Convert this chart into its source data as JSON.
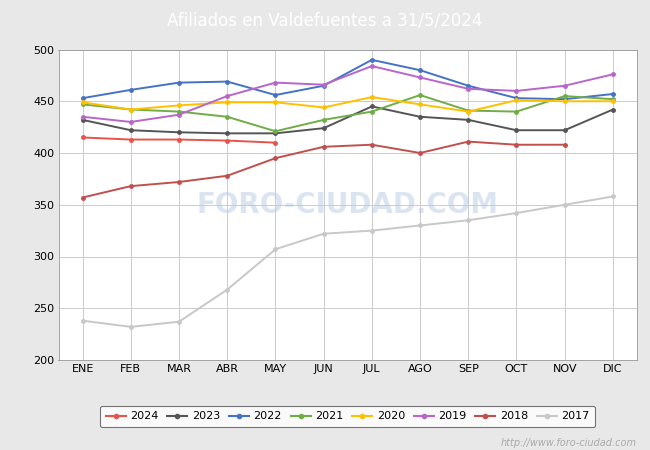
{
  "title": "Afiliados en Valdefuentes a 31/5/2024",
  "title_color": "white",
  "title_bg_color": "#4a7cc7",
  "ylim": [
    200,
    500
  ],
  "yticks": [
    200,
    250,
    300,
    350,
    400,
    450,
    500
  ],
  "months": [
    "ENE",
    "FEB",
    "MAR",
    "ABR",
    "MAY",
    "JUN",
    "JUL",
    "AGO",
    "SEP",
    "OCT",
    "NOV",
    "DIC"
  ],
  "watermark": "http://www.foro-ciudad.com",
  "series": {
    "2024": {
      "color": "#e8534a",
      "data": [
        415,
        413,
        413,
        412,
        410,
        null,
        null,
        null,
        null,
        null,
        null,
        null
      ]
    },
    "2023": {
      "color": "#555555",
      "data": [
        432,
        422,
        420,
        419,
        419,
        424,
        445,
        435,
        432,
        422,
        422,
        442
      ]
    },
    "2022": {
      "color": "#4472c4",
      "data": [
        453,
        461,
        468,
        469,
        456,
        465,
        490,
        480,
        465,
        453,
        452,
        457
      ]
    },
    "2021": {
      "color": "#70ad47",
      "data": [
        447,
        442,
        440,
        435,
        421,
        432,
        440,
        456,
        441,
        440,
        455,
        452
      ]
    },
    "2020": {
      "color": "#ffc000",
      "data": [
        449,
        442,
        446,
        449,
        449,
        444,
        454,
        447,
        440,
        451,
        450,
        450
      ]
    },
    "2019": {
      "color": "#b866c9",
      "data": [
        435,
        430,
        437,
        455,
        468,
        466,
        484,
        473,
        462,
        460,
        465,
        476
      ]
    },
    "2018": {
      "color": "#c0504d",
      "data": [
        357,
        368,
        372,
        378,
        395,
        406,
        408,
        400,
        411,
        408,
        408,
        null
      ]
    },
    "2017": {
      "color": "#c8c8c8",
      "data": [
        238,
        232,
        237,
        268,
        307,
        322,
        325,
        330,
        335,
        342,
        350,
        358
      ]
    }
  },
  "legend_order": [
    "2024",
    "2023",
    "2022",
    "2021",
    "2020",
    "2019",
    "2018",
    "2017"
  ],
  "fig_bg_color": "#e8e8e8",
  "plot_bg_color": "#ffffff",
  "grid_color": "#cccccc",
  "footer_color": "#aaaaaa",
  "title_fontsize": 12,
  "tick_fontsize": 8,
  "legend_fontsize": 8
}
